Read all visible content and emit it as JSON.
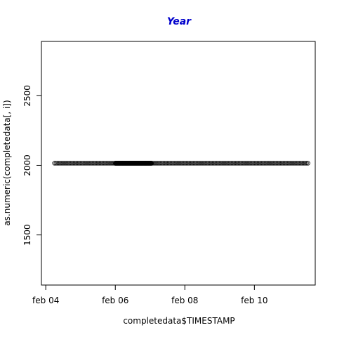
{
  "chart_data": {
    "type": "scatter",
    "title": "Year",
    "title_color": "#0000CC",
    "xlabel": "completedata$TIMESTAMP",
    "ylabel": "as.numeric(completedata[, i])",
    "x_ticks": [
      {
        "date": "2015-02-04",
        "label": "feb 04"
      },
      {
        "date": "2015-02-06",
        "label": "feb 06"
      },
      {
        "date": "2015-02-08",
        "label": "feb 08"
      },
      {
        "date": "2015-02-10",
        "label": "feb 10"
      }
    ],
    "y_ticks": [
      1500,
      2000,
      2500
    ],
    "xlim": [
      "2015-02-03T21:00",
      "2015-02-11T18:00"
    ],
    "ylim": [
      1140,
      2890
    ],
    "series": [
      {
        "x_start": "2015-02-04T06:00",
        "x_end": "2015-02-11T13:00",
        "y": 2015,
        "dense_start": "2015-02-06T00:00",
        "dense_end": "2015-02-07T01:00"
      }
    ],
    "point_color": "#000000",
    "grid": false
  }
}
